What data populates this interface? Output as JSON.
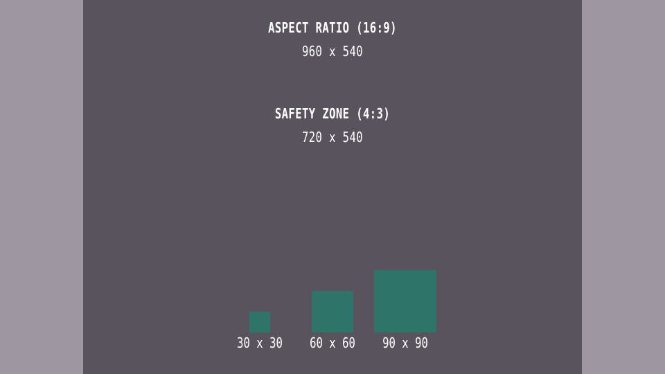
{
  "colors": {
    "outer_background": "#9e97a1",
    "safe_zone_background": "#58535c",
    "square_fill": "#2f7469",
    "text": "#ffffff"
  },
  "aspect": {
    "title": "ASPECT RATIO (16:9)",
    "dimensions": "960 x 540"
  },
  "safety": {
    "title": "SAFETY ZONE (4:3)",
    "dimensions": "720 x 540"
  },
  "squares": [
    {
      "label": "30 x 30"
    },
    {
      "label": "60 x 60"
    },
    {
      "label": "90 x 90"
    }
  ]
}
